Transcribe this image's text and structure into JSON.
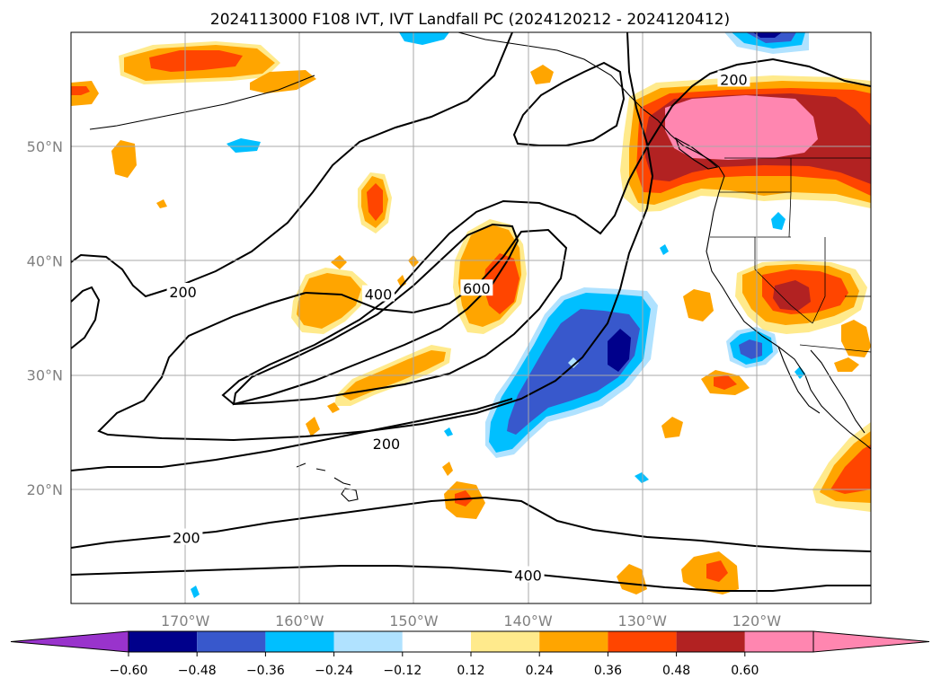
{
  "title": "2024113000 F108 IVT, IVT Landfall PC (2024120212 - 2024120412)",
  "map": {
    "lon_range": [
      -180,
      -110
    ],
    "lat_range": [
      10,
      60
    ],
    "lon_ticks": [
      {
        "lon": -170,
        "label": "170°W"
      },
      {
        "lon": -160,
        "label": "160°W"
      },
      {
        "lon": -150,
        "label": "150°W"
      },
      {
        "lon": -140,
        "label": "140°W"
      },
      {
        "lon": -130,
        "label": "130°W"
      },
      {
        "lon": -120,
        "label": "120°W"
      }
    ],
    "lat_ticks": [
      {
        "lat": 20,
        "label": "20°N"
      },
      {
        "lat": 30,
        "label": "30°N"
      },
      {
        "lat": 40,
        "label": "40°N"
      },
      {
        "lat": 50,
        "label": "50°N"
      }
    ],
    "contour_labels": [
      {
        "text": "200",
        "lon": -170.2,
        "lat": 37.2
      },
      {
        "text": "200",
        "lon": -181.9,
        "lat": 35.2
      },
      {
        "text": "400",
        "lon": -153.1,
        "lat": 37.0
      },
      {
        "text": "600",
        "lon": -144.5,
        "lat": 37.5
      },
      {
        "text": "200",
        "lon": -152.4,
        "lat": 23.9
      },
      {
        "text": "200",
        "lon": -169.9,
        "lat": 15.7
      },
      {
        "text": "400",
        "lon": -140.0,
        "lat": 12.4
      },
      {
        "text": "200",
        "lon": -122.0,
        "lat": 55.8
      }
    ]
  },
  "colorbar": {
    "ticks": [
      "−0.60",
      "−0.48",
      "−0.36",
      "−0.24",
      "−0.12",
      "0.12",
      "0.24",
      "0.36",
      "0.48",
      "0.60"
    ],
    "colors": {
      "under": "#9933cc",
      "bins": [
        "#00008b",
        "#3858cc",
        "#00bfff",
        "#b0e2ff",
        "#ffffff",
        "#ffea8c",
        "#ffa500",
        "#ff4500",
        "#b22222",
        "#ff86b0"
      ],
      "over": "#ff86b0"
    }
  }
}
